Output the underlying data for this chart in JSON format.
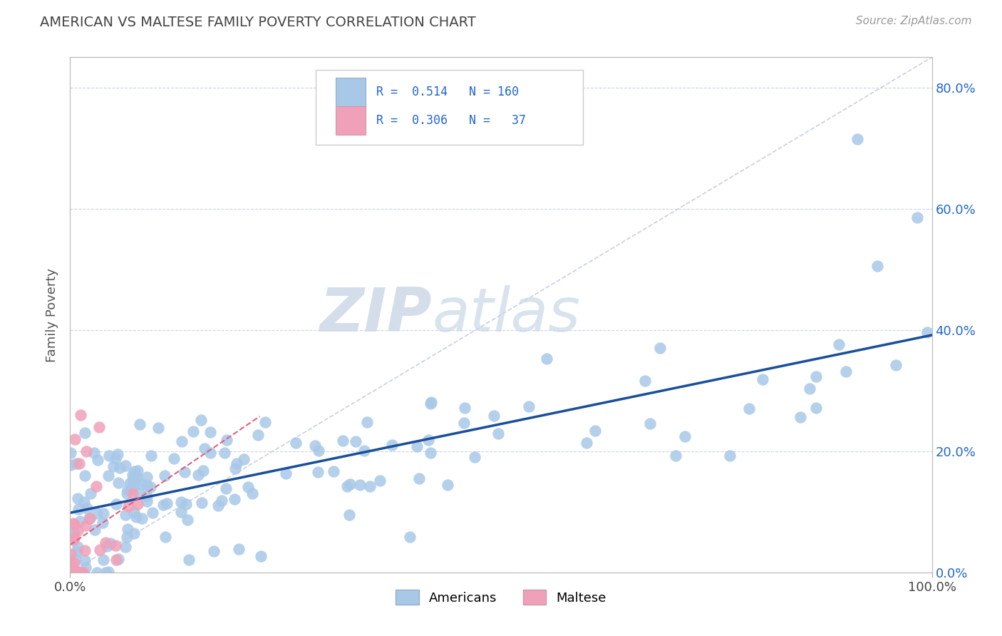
{
  "title": "AMERICAN VS MALTESE FAMILY POVERTY CORRELATION CHART",
  "source_text": "Source: ZipAtlas.com",
  "ylabel": "Family Poverty",
  "title_color": "#444444",
  "title_fontsize": 14,
  "watermark_zip": "ZIP",
  "watermark_atlas": "atlas",
  "blue_color": "#a8c8e8",
  "pink_color": "#f0a0b8",
  "blue_line_color": "#1a4f9a",
  "pink_line_color": "#e06080",
  "diag_color": "#c8d0e0",
  "grid_color": "#c8d4e8",
  "background_color": "#ffffff",
  "xlim": [
    0.0,
    1.0
  ],
  "ylim": [
    0.0,
    0.85
  ],
  "right_ytick_labels": [
    "0.0%",
    "20.0%",
    "40.0%",
    "60.0%",
    "80.0%"
  ],
  "right_ytick_vals": [
    0.0,
    0.2,
    0.4,
    0.6,
    0.8
  ],
  "xtick_labels": [
    "0.0%",
    "100.0%"
  ],
  "xtick_vals": [
    0.0,
    1.0
  ],
  "legend_text1": "R =  0.514   N = 160",
  "legend_text2": "R =  0.306   N =   37"
}
